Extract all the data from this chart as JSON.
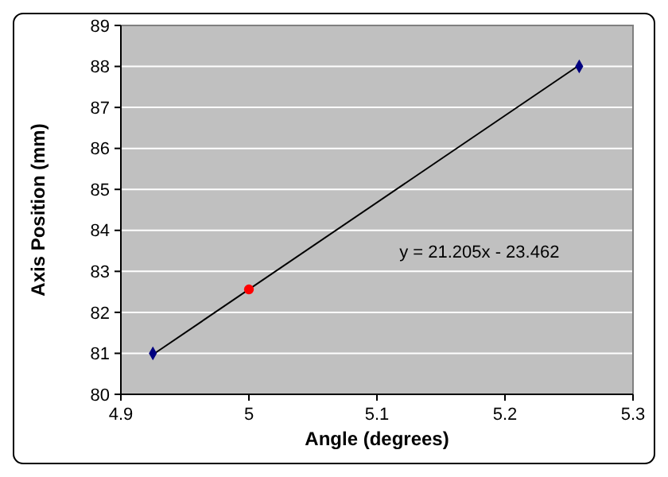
{
  "chart_data": {
    "type": "scatter",
    "xlabel": "Angle (degrees)",
    "ylabel": "Axis Position (mm)",
    "xlim": [
      4.9,
      5.3
    ],
    "xticks": [
      4.9,
      5,
      5.1,
      5.2,
      5.3
    ],
    "ylim": [
      80,
      89
    ],
    "yticks": [
      80,
      81,
      82,
      83,
      84,
      85,
      86,
      87,
      88,
      89
    ],
    "grid": "y",
    "series": [
      {
        "type": "line",
        "x": [
          4.925,
          5.258
        ],
        "values": [
          80.97,
          88.03
        ],
        "color": "#000000",
        "marker": "none",
        "line_style": "solid"
      },
      {
        "x": [
          4.925,
          5.258
        ],
        "values": [
          81.0,
          88.0
        ],
        "color": "#000080",
        "marker": "diamond"
      },
      {
        "x": [
          5.0
        ],
        "values": [
          82.56
        ],
        "color": "#ff0000",
        "marker": "circle"
      }
    ],
    "annotations": [
      "y = 21.205x - 23.462"
    ]
  }
}
